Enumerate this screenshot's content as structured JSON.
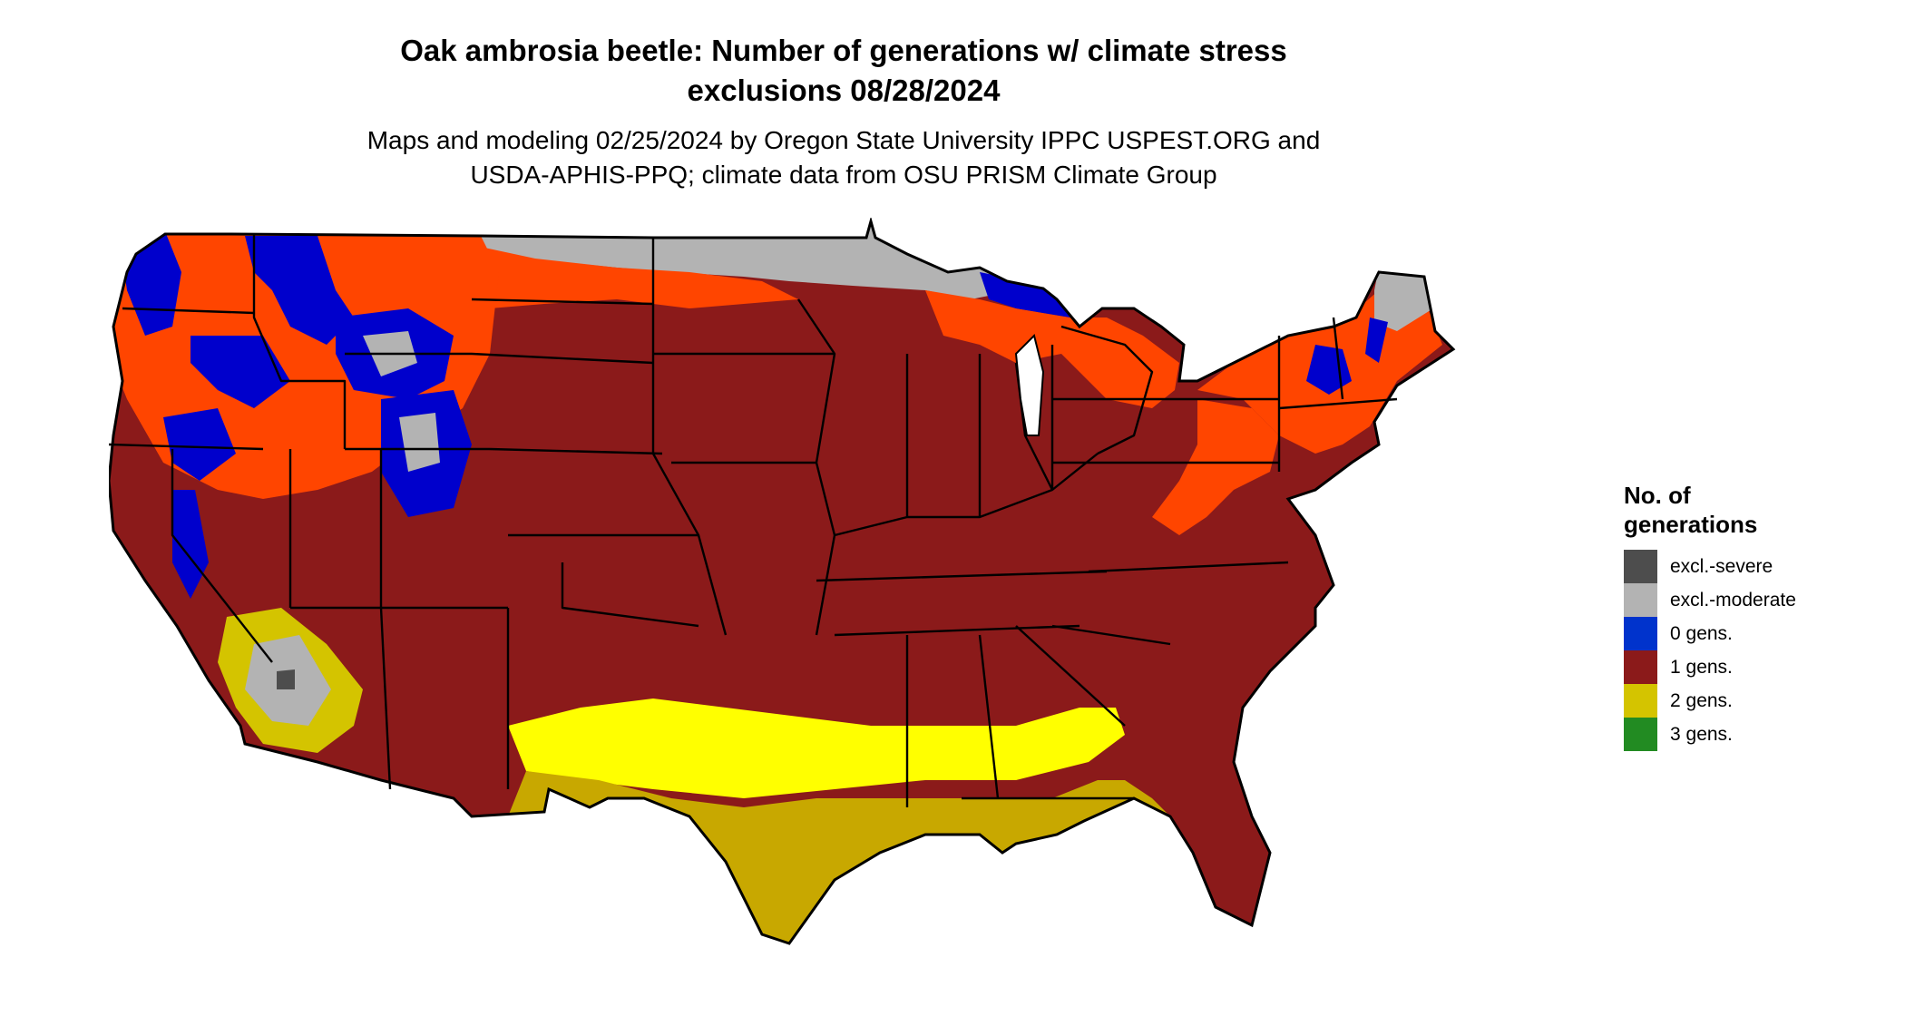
{
  "title_line1": "Oak ambrosia beetle: Number of generations w/ climate stress",
  "title_line2": "exclusions 08/28/2024",
  "subtitle_line1": "Maps and modeling 02/25/2024 by Oregon State University IPPC USPEST.ORG and",
  "subtitle_line2": "USDA-APHIS-PPQ; climate data from OSU PRISM Climate Group",
  "legend": {
    "title_line1": "No. of",
    "title_line2": "generations",
    "items": [
      {
        "label": "excl.-severe",
        "color": "#4d4d4d"
      },
      {
        "label": "excl.-moderate",
        "color": "#b3b3b3"
      },
      {
        "label": "0 gens.",
        "color": "#0033cc"
      },
      {
        "label": "1 gens.",
        "color": "#8b1a1a"
      },
      {
        "label": "2 gens.",
        "color": "#d4c400"
      },
      {
        "label": "3 gens.",
        "color": "#228b22"
      }
    ]
  },
  "colors": {
    "dark_red": "#8b1a1a",
    "orange_red": "#ff4500",
    "blue": "#0000cc",
    "gray": "#b3b3b3",
    "dark_gray": "#4d4d4d",
    "yellow": "#ffff00",
    "olive_yellow": "#c8a800",
    "border": "#000000"
  }
}
